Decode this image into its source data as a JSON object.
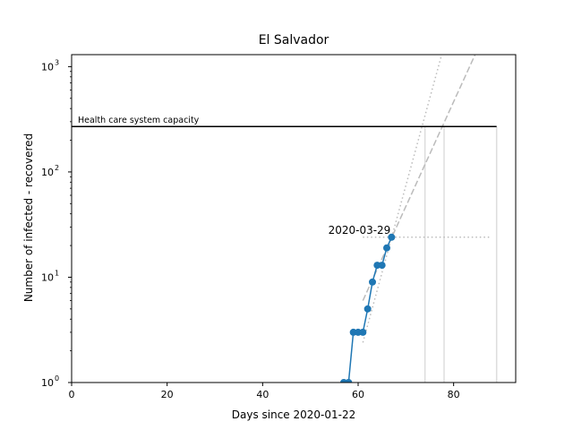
{
  "chart_data": {
    "type": "line",
    "title": "El Salvador",
    "xlabel": "Days since 2020-01-22",
    "ylabel": "Number of infected - recovered",
    "xlim": [
      0,
      93
    ],
    "ylim": [
      1,
      1300
    ],
    "yscale": "log",
    "grid": false,
    "x_ticks": [
      0,
      20,
      40,
      60,
      80
    ],
    "x_tick_labels": [
      "0",
      "20",
      "40",
      "60",
      "80"
    ],
    "y_ticks": [
      1,
      10,
      100,
      1000
    ],
    "y_tick_labels": [
      "10",
      "10",
      "10",
      "10"
    ],
    "y_tick_exponents": [
      "0",
      "1",
      "2",
      "3"
    ],
    "series": [
      {
        "color": "#1f77b4",
        "marker": "circle",
        "x": [
          57,
          58,
          59,
          60,
          61,
          62,
          63,
          64,
          65,
          66,
          67
        ],
        "y": [
          1,
          1,
          3,
          3,
          3,
          5,
          9,
          13,
          13,
          19,
          24
        ]
      }
    ],
    "capacity": {
      "label": "Health care system capacity",
      "value": 270,
      "x_start": 0,
      "x_end": 89,
      "color": "#000000"
    },
    "annotation": {
      "text": "2020-03-29",
      "x": 67,
      "y": 24
    },
    "fit_lines": [
      {
        "style": "dashed",
        "color": "#bbbbbb",
        "x_start": 61,
        "x_end": 84.5,
        "y_start": 6,
        "y_end": 1300
      },
      {
        "style": "dotted",
        "color": "#bbbbbb",
        "x_start": 61,
        "x_end": 77.5,
        "y_start": 2.4,
        "y_end": 1300
      }
    ],
    "reference_hline": {
      "y": 24,
      "x_start": 61,
      "x_end": 87.5,
      "color": "#bbbbbb",
      "style": "dotted"
    },
    "vertical_markers": [
      {
        "x": 74,
        "color": "#dddddd"
      },
      {
        "x": 78,
        "color": "#dddddd"
      },
      {
        "x": 89,
        "color": "#dddddd"
      }
    ]
  }
}
